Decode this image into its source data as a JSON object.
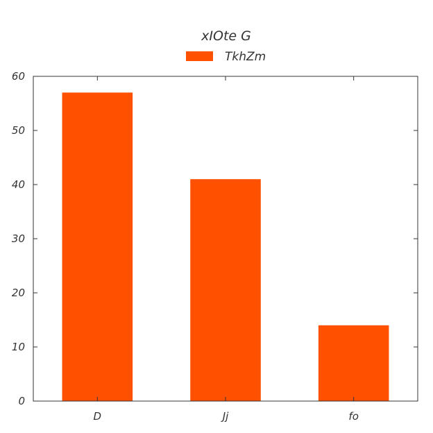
{
  "chart_data": {
    "type": "bar",
    "title": "xIOte G",
    "xlabel": "",
    "ylabel": "",
    "categories": [
      "D",
      "Jj",
      "fo"
    ],
    "series": [
      {
        "name": "TkhZm",
        "values": [
          57,
          41,
          14
        ]
      }
    ],
    "ylim": [
      0,
      60
    ],
    "yticks": [
      0,
      10,
      20,
      30,
      40,
      50,
      60
    ],
    "ytick_labels": [
      "0",
      "10",
      "20",
      "30",
      "40",
      "50",
      "60"
    ],
    "grid": false,
    "legend_position": "top-center",
    "colors": {
      "bar": "#FF5100",
      "axis": "#333333",
      "text": "#333333",
      "background": "#ffffff"
    }
  }
}
